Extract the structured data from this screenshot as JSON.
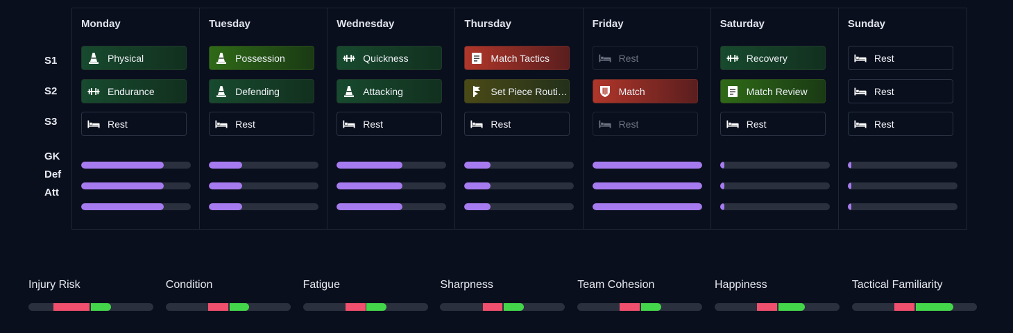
{
  "rows": {
    "s1": "S1",
    "s2": "S2",
    "s3": "S3",
    "gk": "GK",
    "def": "Def",
    "att": "Att"
  },
  "days": [
    {
      "name": "Monday",
      "sessions": [
        {
          "label": "Physical",
          "icon": "cone-icon",
          "tone": "green"
        },
        {
          "label": "Endurance",
          "icon": "dumbbell-icon",
          "tone": "green"
        },
        {
          "label": "Rest",
          "icon": "bed-icon",
          "tone": "rest"
        }
      ],
      "load": {
        "gk": 0.75,
        "def": 0.75,
        "att": 0.75
      }
    },
    {
      "name": "Tuesday",
      "sessions": [
        {
          "label": "Possession",
          "icon": "cone-icon",
          "tone": "lime"
        },
        {
          "label": "Defending",
          "icon": "cone-icon",
          "tone": "green"
        },
        {
          "label": "Rest",
          "icon": "bed-icon",
          "tone": "rest"
        }
      ],
      "load": {
        "gk": 0.3,
        "def": 0.3,
        "att": 0.3
      }
    },
    {
      "name": "Wednesday",
      "sessions": [
        {
          "label": "Quickness",
          "icon": "dumbbell-icon",
          "tone": "green"
        },
        {
          "label": "Attacking",
          "icon": "cone-icon",
          "tone": "green"
        },
        {
          "label": "Rest",
          "icon": "bed-icon",
          "tone": "rest"
        }
      ],
      "load": {
        "gk": 0.6,
        "def": 0.6,
        "att": 0.6
      }
    },
    {
      "name": "Thursday",
      "sessions": [
        {
          "label": "Match Tactics",
          "icon": "clipboard-icon",
          "tone": "red"
        },
        {
          "label": "Set Piece Routines",
          "icon": "flag-icon",
          "tone": "olive"
        },
        {
          "label": "Rest",
          "icon": "bed-icon",
          "tone": "rest"
        }
      ],
      "load": {
        "gk": 0.24,
        "def": 0.24,
        "att": 0.24
      }
    },
    {
      "name": "Friday",
      "sessions": [
        {
          "label": "Rest",
          "icon": "bed-icon",
          "tone": "rest-dim"
        },
        {
          "label": "Match",
          "icon": "shield-icon",
          "tone": "red"
        },
        {
          "label": "Rest",
          "icon": "bed-icon",
          "tone": "rest-dim"
        }
      ],
      "load": {
        "gk": 1.0,
        "def": 1.0,
        "att": 1.0
      }
    },
    {
      "name": "Saturday",
      "sessions": [
        {
          "label": "Recovery",
          "icon": "dumbbell-icon",
          "tone": "green"
        },
        {
          "label": "Match Review",
          "icon": "clipboard-icon",
          "tone": "lime"
        },
        {
          "label": "Rest",
          "icon": "bed-icon",
          "tone": "rest"
        }
      ],
      "load": {
        "gk": 0.04,
        "def": 0.04,
        "att": 0.04
      }
    },
    {
      "name": "Sunday",
      "sessions": [
        {
          "label": "Rest",
          "icon": "bed-icon",
          "tone": "rest"
        },
        {
          "label": "Rest",
          "icon": "bed-icon",
          "tone": "rest"
        },
        {
          "label": "Rest",
          "icon": "bed-icon",
          "tone": "rest"
        }
      ],
      "load": {
        "gk": 0.02,
        "def": 0.02,
        "att": 0.02
      }
    }
  ],
  "metrics": [
    {
      "name": "Injury Risk",
      "red": [
        0.2,
        0.49
      ],
      "green": [
        0.5,
        0.66
      ]
    },
    {
      "name": "Condition",
      "red": [
        0.34,
        0.5
      ],
      "green": [
        0.51,
        0.67
      ]
    },
    {
      "name": "Fatigue",
      "red": [
        0.34,
        0.5
      ],
      "green": [
        0.51,
        0.67
      ]
    },
    {
      "name": "Sharpness",
      "red": [
        0.34,
        0.5
      ],
      "green": [
        0.51,
        0.67
      ]
    },
    {
      "name": "Team Cohesion",
      "red": [
        0.34,
        0.5
      ],
      "green": [
        0.51,
        0.67
      ]
    },
    {
      "name": "Happiness",
      "red": [
        0.34,
        0.5
      ],
      "green": [
        0.51,
        0.72
      ]
    },
    {
      "name": "Tactical Familiarity",
      "red": [
        0.34,
        0.5
      ],
      "green": [
        0.51,
        0.81
      ]
    }
  ],
  "colors": {
    "accent": "#a77bf0",
    "negative": "#f0506e",
    "positive": "#44d64a"
  }
}
